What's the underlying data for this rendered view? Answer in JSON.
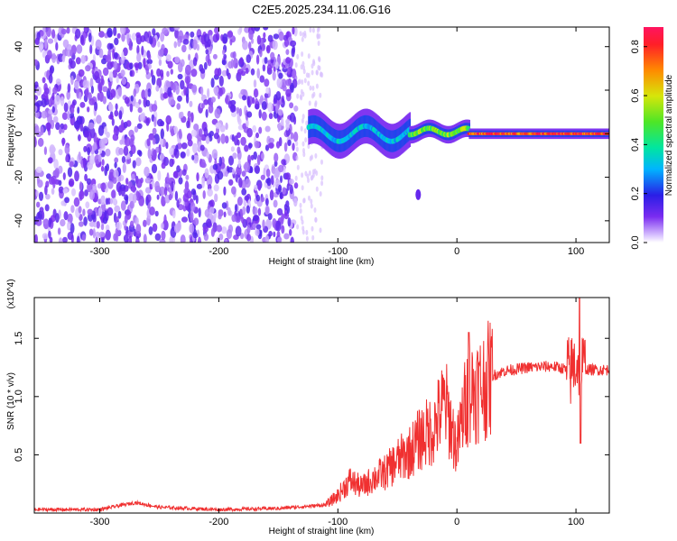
{
  "figure_title": "C2E5.2025.234.11.06.G16",
  "chart_data": [
    {
      "type": "heatmap",
      "title": "C2E5.2025.234.11.06.G16",
      "xlabel": "Height of straight line (km)",
      "ylabel": "Frequency (Hz)",
      "xlim": [
        -355,
        128
      ],
      "ylim": [
        -50,
        49
      ],
      "xticks": [
        -300,
        -200,
        -100,
        0,
        100
      ],
      "xtick_labels": [
        "-300",
        "-200",
        "-100",
        "0",
        "100"
      ],
      "yticks": [
        -40,
        -20,
        0,
        20,
        40
      ],
      "ytick_labels": [
        "-40",
        "-20",
        "0",
        "20",
        "40"
      ],
      "colorbar": {
        "label": "Normalized spectral amplitude",
        "range": [
          0.0,
          0.88
        ],
        "ticks": [
          0.0,
          0.2,
          0.4,
          0.6,
          0.8
        ],
        "tick_labels": [
          "0.0",
          "0.2",
          "0.4",
          "0.6",
          "0.8"
        ],
        "colormap": "rainbow (violet to red)"
      },
      "regions": [
        {
          "description": "noise speckle",
          "x_range": [
            -355,
            -135
          ],
          "freq_range": [
            -50,
            49
          ],
          "amplitude": 0.12
        },
        {
          "description": "signal band onset",
          "x_range": [
            -125,
            -40
          ],
          "freq_center": 0,
          "freq_width": 10,
          "amplitude": 0.35
        },
        {
          "description": "converging signal",
          "x_range": [
            -40,
            10
          ],
          "freq_center": 1,
          "freq_width": 5,
          "amplitude": 0.55
        },
        {
          "description": "strong stable signal",
          "x_range": [
            10,
            128
          ],
          "freq_center": 0,
          "freq_width": 3,
          "amplitude": 0.85
        },
        {
          "description": "isolated blob",
          "x_range": [
            -33,
            -32
          ],
          "freq_center": -28,
          "freq_width": 3,
          "amplitude": 0.08
        }
      ]
    },
    {
      "type": "line",
      "xlabel": "Height of straight line (km)",
      "ylabel": "SNR (10 * v/v)",
      "multiplier": "(x10^4)",
      "xlim": [
        -355,
        128
      ],
      "ylim": [
        0,
        18500
      ],
      "xticks": [
        -300,
        -200,
        -100,
        0,
        100
      ],
      "xtick_labels": [
        "-300",
        "-200",
        "-100",
        "0",
        "100"
      ],
      "yticks": [
        5000,
        10000,
        15000
      ],
      "ytick_labels": [
        "0.5",
        "1.0",
        "1.5"
      ],
      "color": "#f03030",
      "series": [
        {
          "name": "SNR",
          "x": [
            -355,
            -300,
            -270,
            -250,
            -200,
            -150,
            -110,
            -100,
            -90,
            -80,
            -70,
            -60,
            -50,
            -40,
            -30,
            -20,
            -10,
            0,
            5,
            10,
            20,
            30,
            40,
            60,
            80,
            90,
            95,
            100,
            105,
            110,
            128
          ],
          "y": [
            300,
            300,
            900,
            500,
            300,
            400,
            700,
            1500,
            2800,
            2200,
            3000,
            3500,
            4500,
            5200,
            6500,
            7200,
            9500,
            5500,
            8500,
            10500,
            10800,
            11800,
            12200,
            12500,
            12600,
            12400,
            12000,
            13000,
            12600,
            12300,
            12300
          ]
        }
      ],
      "annotations": [
        {
          "x": 10,
          "y": 15500,
          "text": "spike"
        },
        {
          "x": 103,
          "y": 18500,
          "text": "spike"
        },
        {
          "x": 103,
          "y": 6000,
          "text": "dip"
        }
      ]
    }
  ]
}
